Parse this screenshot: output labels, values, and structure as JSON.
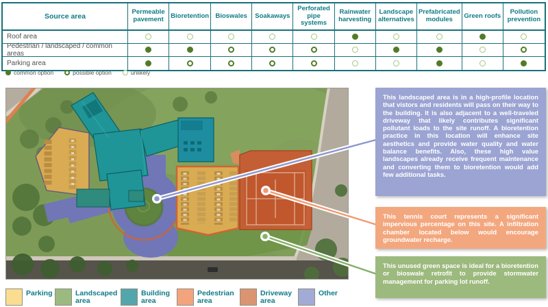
{
  "matrix": {
    "source_header": "Source area",
    "columns": [
      "Permeable pavement",
      "Bioretention",
      "Bioswales",
      "Soakaways",
      "Perforated pipe systems",
      "Rainwater harvesting",
      "Landscape alternatives",
      "Prefabricated modules",
      "Green roofs",
      "Pollution prevention"
    ],
    "rows": [
      {
        "label": "Roof area",
        "values": [
          "unlikely",
          "unlikely",
          "unlikely",
          "unlikely",
          "unlikely",
          "common",
          "unlikely",
          "unlikely",
          "common",
          "unlikely"
        ]
      },
      {
        "label": "Pedestrian / landscaped / common areas",
        "values": [
          "common",
          "common",
          "possible",
          "possible",
          "possible",
          "unlikely",
          "common",
          "common",
          "unlikely",
          "possible"
        ]
      },
      {
        "label": "Parking area",
        "values": [
          "common",
          "possible",
          "possible",
          "possible",
          "possible",
          "unlikely",
          "unlikely",
          "common",
          "unlikely",
          "common"
        ]
      }
    ],
    "symbol_legend": [
      {
        "symbol": "common",
        "label": "common option"
      },
      {
        "symbol": "possible",
        "label": "possible option"
      },
      {
        "symbol": "unlikely",
        "label": "unlikely"
      }
    ]
  },
  "callouts": [
    {
      "color": "#9ba4d2",
      "text": "This landscaped area is in a high-profile location that vistors and residents will pass on their way to the building. It is also adjacent to a well-traveled driveway that likely contributes significant pollutant loads to the site runoff. A bioretention practice in this location will enhance site aesthetics and provide water quality and water balance benefits. Also, these high value landscapes already receive frequent maintenance and converting them to bioretention would add few additional tasks."
    },
    {
      "color": "#f3a77e",
      "text": "This tennis court represents a significant impervious percentage on this site. A infiltration chamber located below would encourage groundwater recharge."
    },
    {
      "color": "#9cba7e",
      "text": "This unused green space is ideal for a bioretention or bioswale retrofit to provide stormwater management for parking lot runoff."
    }
  ],
  "map": {
    "legend": [
      {
        "label": "Parking area",
        "color": "#fbdd92"
      },
      {
        "label": "Landscaped area",
        "color": "#9cba80"
      },
      {
        "label": "Building area",
        "color": "#53a6ab"
      },
      {
        "label": "Pedestrian area",
        "color": "#f3a47d"
      },
      {
        "label": "Driveway area",
        "color": "#db9472"
      },
      {
        "label": "Other",
        "color": "#a2abd5"
      }
    ]
  },
  "colors": {
    "table_border": "#17707a",
    "header_bg": "#cfdedd",
    "header_text": "#0f7b86",
    "symbol_green": "#507c28",
    "symbol_light_green": "#a5c386",
    "leader_blue": "#8d97cf",
    "leader_orange": "#f09a72",
    "leader_green": "#85b169"
  }
}
